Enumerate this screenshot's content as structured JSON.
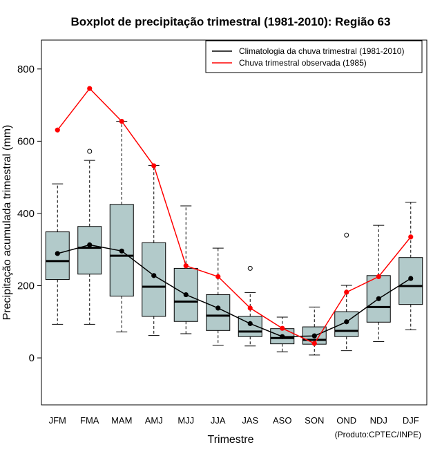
{
  "chart_data": {
    "type": "boxplot",
    "title": "Boxplot de precipitação trimestral (1981-2010): Região 63",
    "xlabel": "Trimestre",
    "ylabel": "Precipitação acumulada trimestral (mm)",
    "ylim": [
      -130,
      880
    ],
    "yticks": [
      0,
      200,
      400,
      600,
      800
    ],
    "categories": [
      "JFM",
      "FMA",
      "MAM",
      "AMJ",
      "MJJ",
      "JJA",
      "JAS",
      "ASO",
      "SON",
      "OND",
      "NDJ",
      "DJF"
    ],
    "boxes": [
      {
        "min": 93,
        "q1": 217,
        "median": 268,
        "q3": 349,
        "max": 482,
        "outliers": []
      },
      {
        "min": 93,
        "q1": 232,
        "median": 305,
        "q3": 364,
        "max": 547,
        "outliers": [
          572
        ]
      },
      {
        "min": 72,
        "q1": 171,
        "median": 283,
        "q3": 425,
        "max": 655,
        "outliers": []
      },
      {
        "min": 62,
        "q1": 115,
        "median": 197,
        "q3": 319,
        "max": 533,
        "outliers": []
      },
      {
        "min": 67,
        "q1": 101,
        "median": 156,
        "q3": 248,
        "max": 421,
        "outliers": []
      },
      {
        "min": 35,
        "q1": 76,
        "median": 117,
        "q3": 175,
        "max": 304,
        "outliers": []
      },
      {
        "min": 33,
        "q1": 59,
        "median": 73,
        "q3": 115,
        "max": 181,
        "outliers": [
          248
        ]
      },
      {
        "min": 17,
        "q1": 39,
        "median": 55,
        "q3": 81,
        "max": 113,
        "outliers": []
      },
      {
        "min": 8,
        "q1": 38,
        "median": 50,
        "q3": 86,
        "max": 141,
        "outliers": []
      },
      {
        "min": 20,
        "q1": 59,
        "median": 75,
        "q3": 128,
        "max": 201,
        "outliers": [
          340
        ]
      },
      {
        "min": 45,
        "q1": 99,
        "median": 141,
        "q3": 228,
        "max": 367,
        "outliers": []
      },
      {
        "min": 78,
        "q1": 148,
        "median": 199,
        "q3": 278,
        "max": 431,
        "outliers": []
      }
    ],
    "series": [
      {
        "name": "Climatologia da chuva trimestral (1981-2010)",
        "color": "#000000",
        "values": [
          289,
          313,
          296,
          228,
          175,
          138,
          95,
          59,
          61,
          100,
          164,
          220
        ]
      },
      {
        "name": "Chuva trimestral observada (1985)",
        "color": "#ff0000",
        "values": [
          631,
          746,
          655,
          532,
          255,
          225,
          138,
          82,
          40,
          182,
          225,
          335
        ]
      }
    ],
    "box_fill": "#b2caca",
    "legend_position": "top-right",
    "credit": "(Produto:CPTEC/INPE)"
  }
}
